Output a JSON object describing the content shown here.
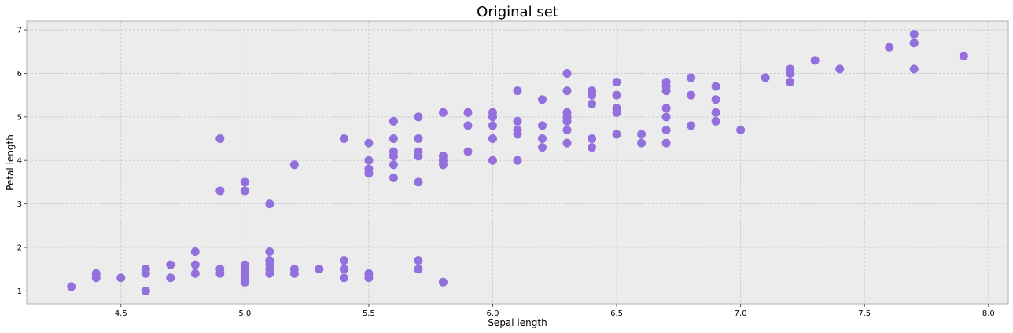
{
  "chart_data": {
    "type": "scatter",
    "title": "Original set",
    "xlabel": "Sepal length",
    "ylabel": "Petal length",
    "xlim": [
      4.12,
      8.08
    ],
    "ylim": [
      0.7,
      7.2
    ],
    "xticks": [
      4.5,
      5.0,
      5.5,
      6.0,
      6.5,
      7.0,
      7.5,
      8.0
    ],
    "xtick_labels": [
      "4.5",
      "5.0",
      "5.5",
      "6.0",
      "6.5",
      "7.0",
      "7.5",
      "8.0"
    ],
    "yticks": [
      1,
      2,
      3,
      4,
      5,
      6,
      7
    ],
    "ytick_labels": [
      "1",
      "2",
      "3",
      "4",
      "5",
      "6",
      "7"
    ],
    "grid": true,
    "background": "#ececec",
    "marker_color": "#9370db",
    "series": [
      {
        "points": [
          [
            4.3,
            1.1
          ],
          [
            4.4,
            1.3
          ],
          [
            4.4,
            1.4
          ],
          [
            4.5,
            1.3
          ],
          [
            4.6,
            1.0
          ],
          [
            4.6,
            1.4
          ],
          [
            4.6,
            1.5
          ],
          [
            4.7,
            1.3
          ],
          [
            4.7,
            1.6
          ],
          [
            4.8,
            1.4
          ],
          [
            4.8,
            1.6
          ],
          [
            4.8,
            1.9
          ],
          [
            4.9,
            1.4
          ],
          [
            4.9,
            1.5
          ],
          [
            5.0,
            1.2
          ],
          [
            5.0,
            1.3
          ],
          [
            5.0,
            1.4
          ],
          [
            5.0,
            1.5
          ],
          [
            5.0,
            1.6
          ],
          [
            5.1,
            1.4
          ],
          [
            5.1,
            1.5
          ],
          [
            5.1,
            1.6
          ],
          [
            5.1,
            1.7
          ],
          [
            5.1,
            1.9
          ],
          [
            5.2,
            1.4
          ],
          [
            5.2,
            1.5
          ],
          [
            5.3,
            1.5
          ],
          [
            5.4,
            1.3
          ],
          [
            5.4,
            1.5
          ],
          [
            5.4,
            1.7
          ],
          [
            5.5,
            1.3
          ],
          [
            5.5,
            1.4
          ],
          [
            5.7,
            1.5
          ],
          [
            5.7,
            1.7
          ],
          [
            5.8,
            1.2
          ],
          [
            4.9,
            3.3
          ],
          [
            4.9,
            4.5
          ],
          [
            5.0,
            3.3
          ],
          [
            5.0,
            3.5
          ],
          [
            5.1,
            3.0
          ],
          [
            5.2,
            3.9
          ],
          [
            5.4,
            4.5
          ],
          [
            5.5,
            3.7
          ],
          [
            5.5,
            3.8
          ],
          [
            5.5,
            4.0
          ],
          [
            5.5,
            4.4
          ],
          [
            5.6,
            3.6
          ],
          [
            5.6,
            3.9
          ],
          [
            5.6,
            4.1
          ],
          [
            5.6,
            4.2
          ],
          [
            5.6,
            4.5
          ],
          [
            5.6,
            4.9
          ],
          [
            5.7,
            3.5
          ],
          [
            5.7,
            4.1
          ],
          [
            5.7,
            4.2
          ],
          [
            5.7,
            4.5
          ],
          [
            5.7,
            5.0
          ],
          [
            5.8,
            3.9
          ],
          [
            5.8,
            4.0
          ],
          [
            5.8,
            4.1
          ],
          [
            5.8,
            5.1
          ],
          [
            5.9,
            4.2
          ],
          [
            5.9,
            4.8
          ],
          [
            5.9,
            5.1
          ],
          [
            6.0,
            4.0
          ],
          [
            6.0,
            4.5
          ],
          [
            6.0,
            4.8
          ],
          [
            6.0,
            5.0
          ],
          [
            6.0,
            5.1
          ],
          [
            6.1,
            4.0
          ],
          [
            6.1,
            4.6
          ],
          [
            6.1,
            4.7
          ],
          [
            6.1,
            4.9
          ],
          [
            6.1,
            5.6
          ],
          [
            6.2,
            4.3
          ],
          [
            6.2,
            4.5
          ],
          [
            6.2,
            4.8
          ],
          [
            6.2,
            5.4
          ],
          [
            6.3,
            4.4
          ],
          [
            6.3,
            4.7
          ],
          [
            6.3,
            4.9
          ],
          [
            6.3,
            5.0
          ],
          [
            6.3,
            5.1
          ],
          [
            6.3,
            5.6
          ],
          [
            6.3,
            6.0
          ],
          [
            6.4,
            4.3
          ],
          [
            6.4,
            4.5
          ],
          [
            6.4,
            5.3
          ],
          [
            6.4,
            5.5
          ],
          [
            6.4,
            5.6
          ],
          [
            6.5,
            4.6
          ],
          [
            6.5,
            5.1
          ],
          [
            6.5,
            5.2
          ],
          [
            6.5,
            5.5
          ],
          [
            6.5,
            5.8
          ],
          [
            6.6,
            4.4
          ],
          [
            6.6,
            4.6
          ],
          [
            6.7,
            4.4
          ],
          [
            6.7,
            4.7
          ],
          [
            6.7,
            5.0
          ],
          [
            6.7,
            5.2
          ],
          [
            6.7,
            5.6
          ],
          [
            6.7,
            5.7
          ],
          [
            6.7,
            5.8
          ],
          [
            6.8,
            4.8
          ],
          [
            6.8,
            5.5
          ],
          [
            6.8,
            5.9
          ],
          [
            6.9,
            4.9
          ],
          [
            6.9,
            5.1
          ],
          [
            6.9,
            5.4
          ],
          [
            6.9,
            5.7
          ],
          [
            7.0,
            4.7
          ],
          [
            7.1,
            5.9
          ],
          [
            7.2,
            5.8
          ],
          [
            7.2,
            6.0
          ],
          [
            7.2,
            6.1
          ],
          [
            7.3,
            6.3
          ],
          [
            7.4,
            6.1
          ],
          [
            7.6,
            6.6
          ],
          [
            7.7,
            6.1
          ],
          [
            7.7,
            6.7
          ],
          [
            7.7,
            6.9
          ],
          [
            7.9,
            6.4
          ]
        ]
      }
    ]
  }
}
